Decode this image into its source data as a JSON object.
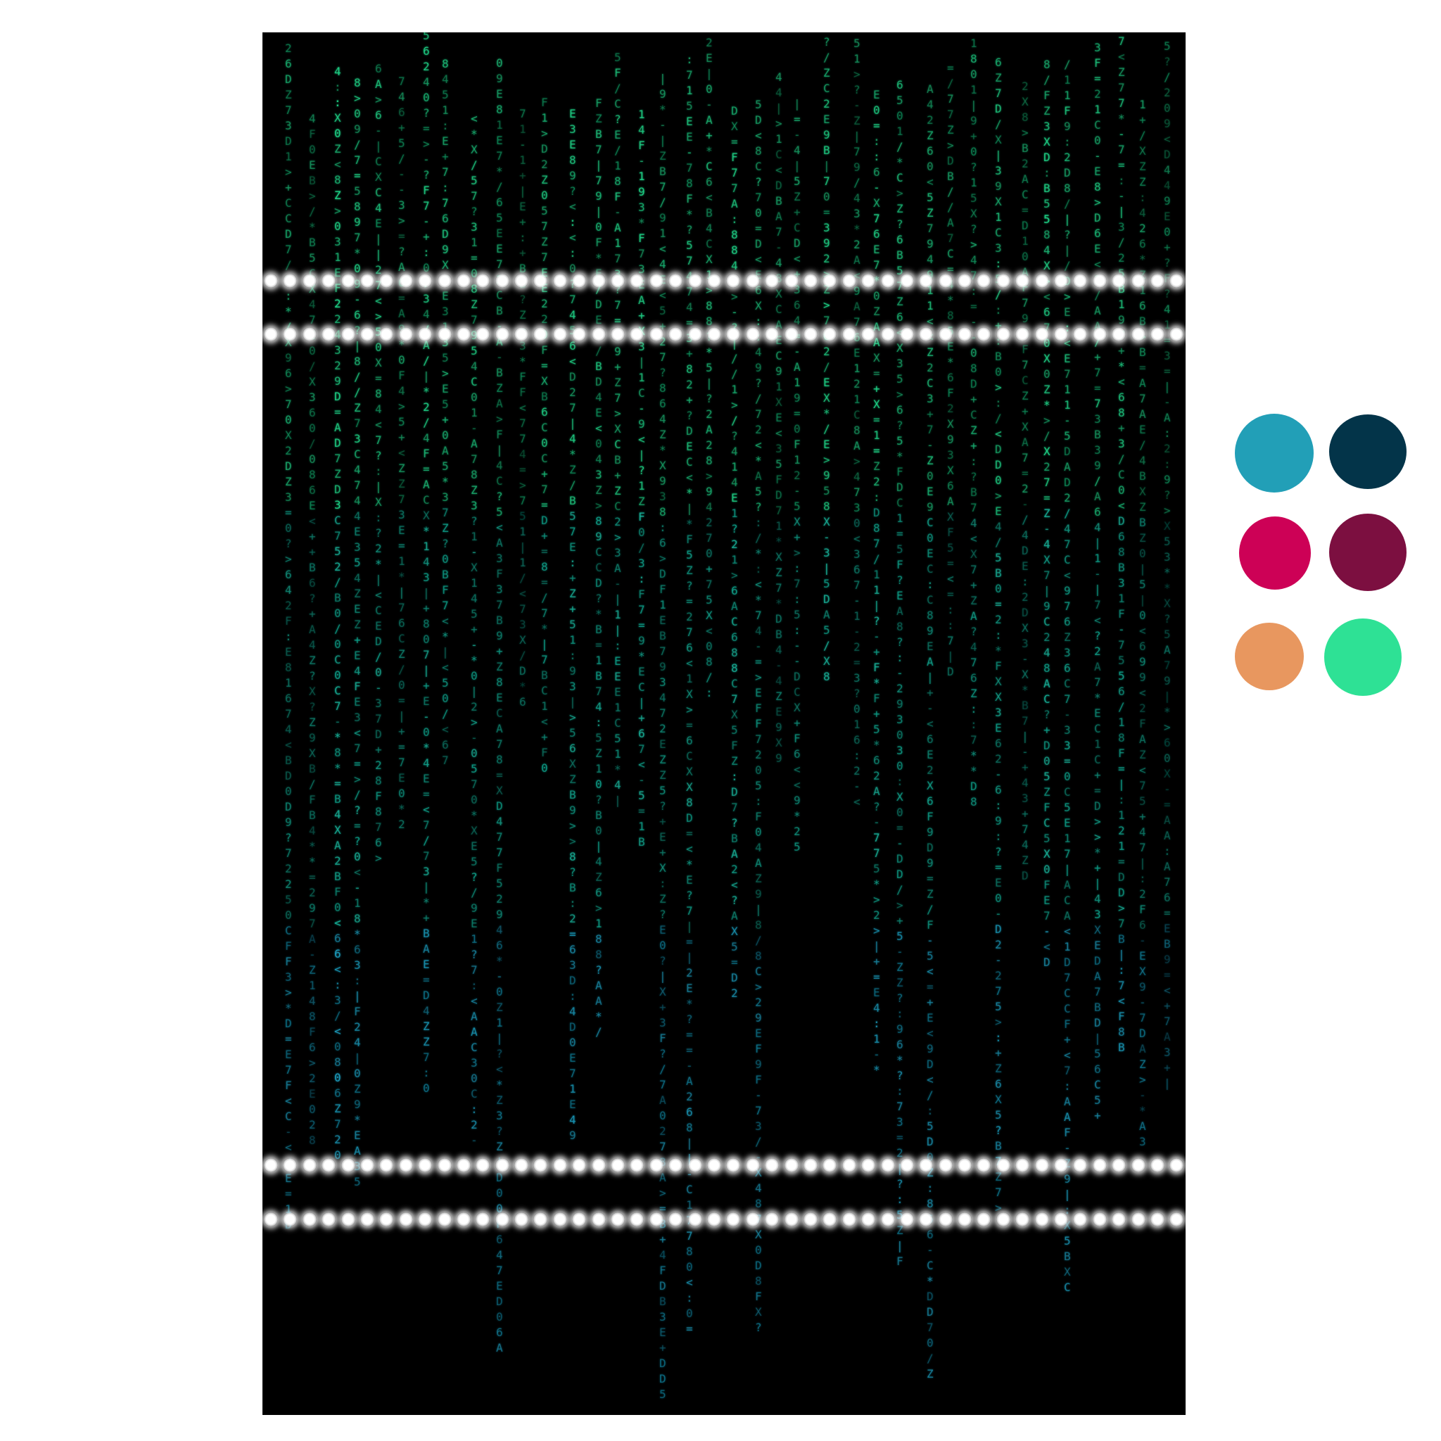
{
  "artwork": {
    "background_color": "#000000",
    "glyph_colors": {
      "top": "#1fd88a",
      "middle": "#17b39a",
      "bottom": "#1c9fc0"
    },
    "led_color": "#ffffff",
    "led_strip_count": 4
  },
  "palette": {
    "swatches": [
      {
        "name": "teal",
        "color": "#229fb7"
      },
      {
        "name": "dark-navy",
        "color": "#033449"
      },
      {
        "name": "magenta",
        "color": "#cd0156"
      },
      {
        "name": "plum",
        "color": "#7c0f40"
      },
      {
        "name": "peach",
        "color": "#e8975f"
      },
      {
        "name": "mint",
        "color": "#2ee195"
      }
    ]
  }
}
